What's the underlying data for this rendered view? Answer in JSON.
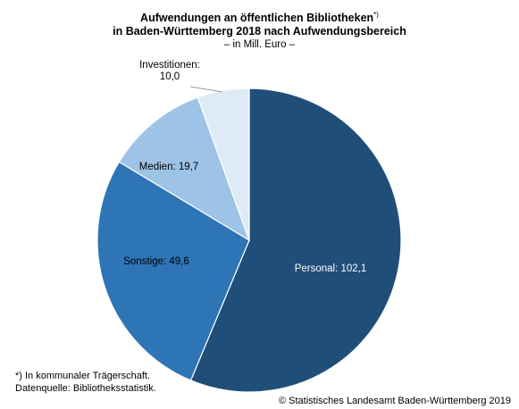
{
  "chart_data": {
    "type": "pie",
    "title_line1": "Aufwendungen an öffentlichen Bibliotheken",
    "title_marker": "*)",
    "title_line2": "in Baden-Württemberg 2018 nach Aufwendungsbereich",
    "subtitle": "– in Mill. Euro –",
    "slices": [
      {
        "name": "Personal",
        "value": 102.1,
        "label": "Personal: 102,1",
        "color": "#1f4e79",
        "label_color": "#ffffff"
      },
      {
        "name": "Sonstige",
        "value": 49.6,
        "label": "Sonstige: 49,6",
        "color": "#2e75b6",
        "label_color": "#000000"
      },
      {
        "name": "Medien",
        "value": 19.7,
        "label": "Medien: 19,7",
        "color": "#9dc3e6",
        "label_color": "#000000"
      },
      {
        "name": "Investitionen",
        "value": 10.0,
        "label_line1": "Investitionen:",
        "label_line2": "10,0",
        "color": "#deebf7",
        "label_color": "#000000"
      }
    ]
  },
  "footnote": {
    "line1": "*) In kommunaler Trägerschaft.",
    "line2": "Datenquelle: Bibliotheksstatistik."
  },
  "source": "© Statistisches Landesamt Baden-Württemberg 2019"
}
